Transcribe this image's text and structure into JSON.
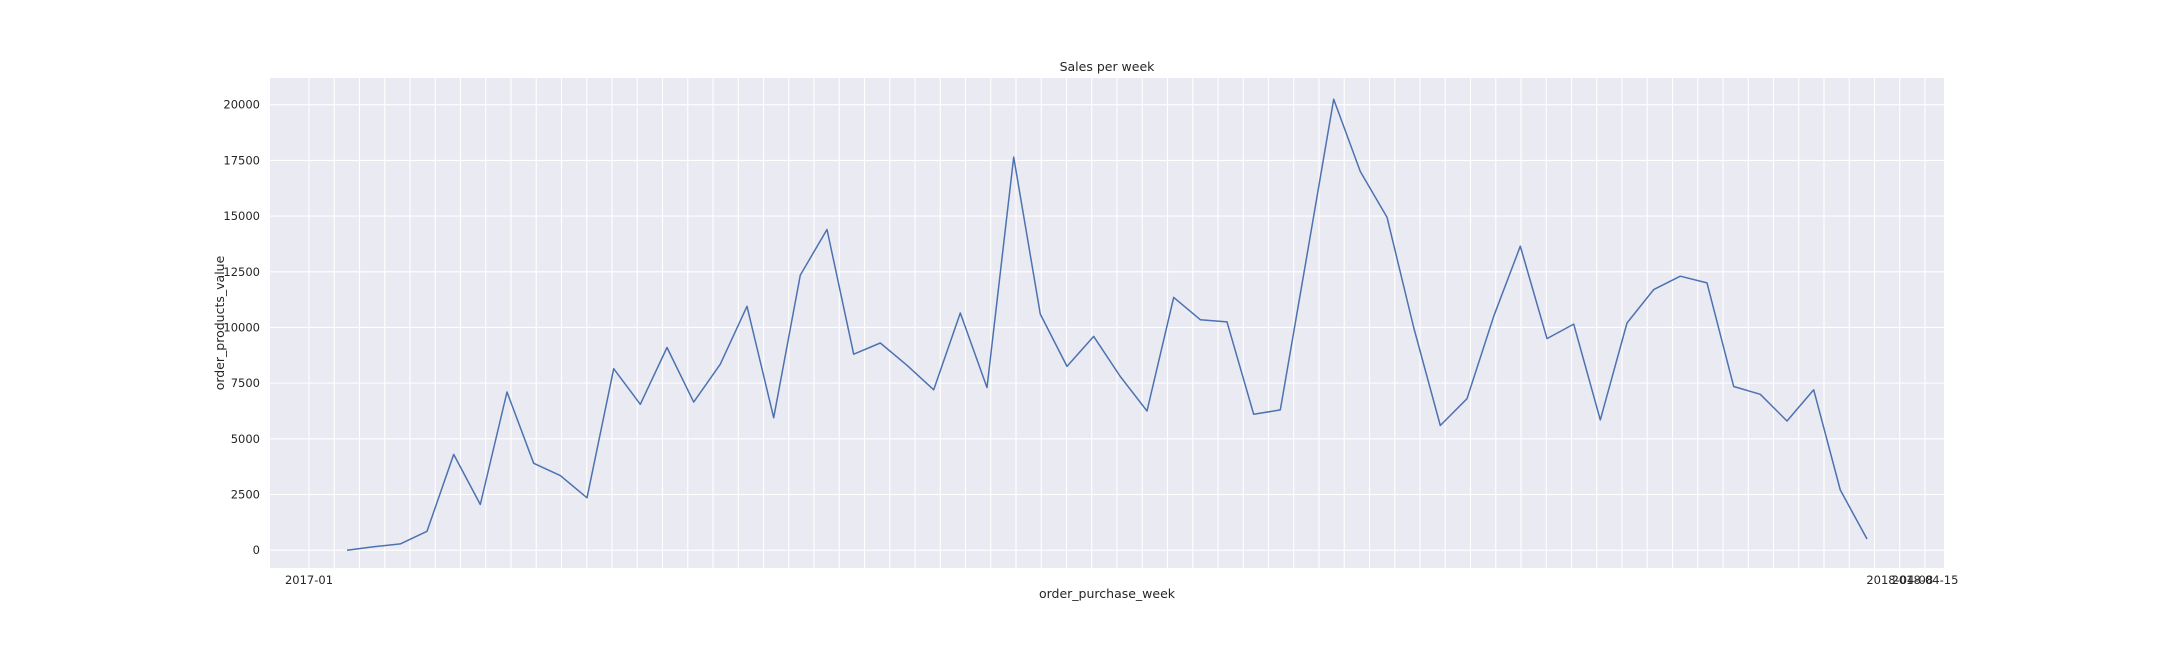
{
  "chart_data": {
    "type": "line",
    "title": "Sales per week",
    "xlabel": "order_purchase_week",
    "ylabel": "order_products_value",
    "ylim": [
      -800,
      21200
    ],
    "yticks": [
      0,
      2500,
      5000,
      7500,
      10000,
      12500,
      15000,
      17500,
      20000
    ],
    "ytick_labels": [
      "0",
      "2500",
      "5000",
      "7500",
      "10000",
      "12500",
      "15000",
      "17500",
      "20000"
    ],
    "xtick_labels": [
      "2017-01",
      "",
      "",
      "",
      "",
      "",
      "",
      "",
      "",
      "",
      "",
      "",
      "",
      "",
      "",
      "",
      "",
      "",
      "",
      "",
      "",
      "",
      "",
      "",
      "",
      "",
      "",
      "",
      "",
      "",
      "",
      "",
      "",
      "",
      "",
      "",
      "",
      "",
      "",
      "",
      "",
      "",
      "",
      "",
      "",
      "",
      "",
      "",
      "",
      "",
      "",
      "",
      "",
      "",
      "",
      "",
      "",
      "",
      "",
      "",
      "",
      "",
      "",
      "2018-04-08",
      "2018-04-15"
    ],
    "grid": true,
    "line_color": "#4c72b0",
    "background_color": "#eaeaf2",
    "series": [
      {
        "values": [
          0,
          150,
          280,
          850,
          4300,
          2050,
          7100,
          3900,
          3350,
          2350,
          8150,
          6550,
          9100,
          6650,
          8350,
          10950,
          5950,
          12350,
          14400,
          8800,
          9300,
          8300,
          7200,
          10650,
          7300,
          17650,
          10600,
          8250,
          9600,
          7800,
          6250,
          11350,
          10350,
          10250,
          6100,
          6300,
          13250,
          20250,
          17000,
          14950,
          10000,
          5600,
          6800,
          10500,
          13650,
          9500,
          10150,
          5850,
          10200,
          11700,
          12300,
          12000,
          7350,
          7000,
          5800,
          7200,
          2700,
          500
        ]
      }
    ]
  }
}
